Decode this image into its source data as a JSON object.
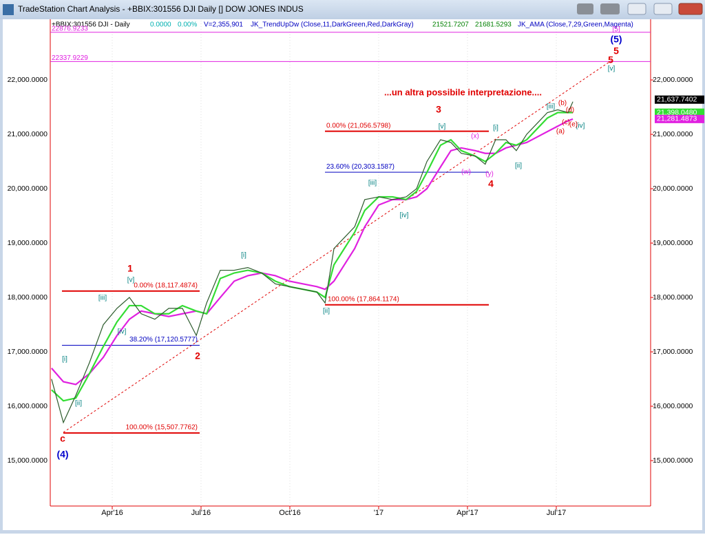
{
  "window": {
    "title": "TradeStation Chart Analysis - +BBIX:301556 DJI Daily [] DOW JONES INDUS"
  },
  "chart_data": {
    "type": "line",
    "header": {
      "symbol": "+BBIX:301556 DJI - Daily",
      "change": "0.0000",
      "change_pct": "0.00%",
      "volume": "V=2,355,901",
      "indicator1": "JK_TrendUpDw (Close,11,DarkGreen,Red,DarkGray)",
      "indicator1_v1": "21521.7207",
      "indicator1_v2": "21681.5293",
      "indicator2": "JK_AMA (Close,7,29,Green,Magenta)"
    },
    "annotation": "...un altra possibile interpretazione....",
    "x": [
      0.95,
      1.35,
      1.77,
      2.23,
      2.7,
      3.16,
      3.58,
      3.98,
      4.44,
      4.91,
      5.37,
      5.84,
      6.19,
      6.65,
      7.12,
      7.58,
      8.05,
      8.51,
      8.98,
      9.44,
      9.91,
      10.19,
      10.49,
      10.84,
      11.19,
      11.53,
      12.0,
      12.47,
      12.93,
      13.28,
      13.63,
      14.09,
      14.44,
      14.79,
      15.26,
      15.6,
      15.95,
      16.3,
      16.65,
      17.0,
      17.35,
      17.7,
      18.05,
      18.4,
      18.56
    ],
    "series": [
      {
        "color": "#2b5a2b",
        "values": [
          16500,
          15700,
          16200,
          16800,
          17500,
          17800,
          18000,
          17700,
          17600,
          17800,
          17800,
          17300,
          17900,
          18500,
          18500,
          18550,
          18450,
          18250,
          18200,
          18150,
          18100,
          17900,
          18900,
          19100,
          19300,
          19800,
          19850,
          19800,
          19850,
          20000,
          20500,
          20900,
          20850,
          20650,
          20600,
          20450,
          20900,
          20900,
          20700,
          21000,
          21200,
          21400,
          21450,
          21400,
          21600
        ]
      },
      {
        "color": "#33dd33",
        "values": [
          16300,
          16100,
          16150,
          16600,
          17100,
          17550,
          17850,
          17850,
          17700,
          17700,
          17850,
          17750,
          17700,
          18350,
          18450,
          18500,
          18450,
          18300,
          18200,
          18150,
          18100,
          18000,
          18600,
          18900,
          19200,
          19600,
          19850,
          19850,
          19800,
          19950,
          20300,
          20800,
          20900,
          20700,
          20600,
          20500,
          20650,
          20850,
          20800,
          20900,
          21100,
          21300,
          21400,
          21400,
          21400
        ]
      },
      {
        "color": "#e020e0",
        "values": [
          16700,
          16450,
          16400,
          16600,
          16900,
          17300,
          17600,
          17750,
          17700,
          17650,
          17700,
          17750,
          17700,
          18000,
          18300,
          18400,
          18450,
          18400,
          18300,
          18250,
          18200,
          18150,
          18300,
          18600,
          18900,
          19300,
          19700,
          19800,
          19800,
          19850,
          20000,
          20400,
          20700,
          20750,
          20700,
          20650,
          20650,
          20750,
          20800,
          20850,
          20950,
          21050,
          21150,
          21250,
          21280
        ]
      }
    ],
    "xlim": [
      0.907,
      21.186
    ],
    "xticks": [
      {
        "value": 3,
        "label": "Apr'16"
      },
      {
        "value": 6,
        "label": "Jul'16"
      },
      {
        "value": 9,
        "label": "Oct'16"
      },
      {
        "value": 12,
        "label": "'17"
      },
      {
        "value": 15,
        "label": "Apr'17"
      },
      {
        "value": 18,
        "label": "Jul'17"
      }
    ],
    "ylim": [
      14165,
      23090
    ],
    "yticks": [
      {
        "value": 15000,
        "label": "15,000.0000"
      },
      {
        "value": 16000,
        "label": "16,000.0000"
      },
      {
        "value": 17000,
        "label": "17,000.0000"
      },
      {
        "value": 18000,
        "label": "18,000.0000"
      },
      {
        "value": 19000,
        "label": "19,000.0000"
      },
      {
        "value": 20000,
        "label": "20,000.0000"
      },
      {
        "value": 21000,
        "label": "21,000.0000"
      },
      {
        "value": 22000,
        "label": "22,000.0000"
      }
    ],
    "levels": [
      {
        "label": "0.00% (18,117.4874)",
        "value": 18117.4874,
        "color": "#e00000"
      },
      {
        "label": "38.20% (17,120.5777)",
        "value": 17120.5777,
        "color": "#0000c0"
      },
      {
        "label": "100.00% (15,507.7762)",
        "value": 15507.7762,
        "color": "#e00000"
      },
      {
        "label": "0.00% (21,056.5798)",
        "value": 21056.5798,
        "color": "#e00000"
      },
      {
        "label": "23.60% (20,303.1587)",
        "value": 20303.1587,
        "color": "#0000c0"
      },
      {
        "label": "100.00% (17,864.1174)",
        "value": 17864.1174,
        "color": "#e00000"
      }
    ],
    "magenta_levels": [
      {
        "label": "22876.9233",
        "value": 22876.9233
      },
      {
        "label": "22337.9229",
        "value": 22337.9229
      }
    ],
    "last_values": [
      {
        "label": "21,637.7402",
        "value": 21637.7402,
        "color": "#000000"
      },
      {
        "label": "21,398.0480",
        "value": 21398.048,
        "color": "#33dd33"
      },
      {
        "label": "21,281.4873",
        "value": 21281.4873,
        "color": "#e020e0"
      }
    ],
    "wave_labels": [
      {
        "text": "1",
        "color": "#e00000"
      },
      {
        "text": "2",
        "color": "#e00000"
      },
      {
        "text": "3",
        "color": "#e00000"
      },
      {
        "text": "4",
        "color": "#e00000"
      },
      {
        "text": "5",
        "color": "#e00000"
      },
      {
        "text": "5",
        "color": "#e00000"
      },
      {
        "text": "(5)",
        "color": "#0000cc"
      },
      {
        "text": "[5]",
        "color": "#e020e0"
      },
      {
        "text": "(4)",
        "color": "#0000cc"
      },
      {
        "text": "c",
        "color": "#e00000"
      },
      {
        "text": "[i]",
        "color": "#008080"
      },
      {
        "text": "[ii]",
        "color": "#008080"
      },
      {
        "text": "[iii]",
        "color": "#008080"
      },
      {
        "text": "[iv]",
        "color": "#008080"
      },
      {
        "text": "[v]",
        "color": "#008080"
      },
      {
        "text": "[i]",
        "color": "#008080"
      },
      {
        "text": "[ii]",
        "color": "#008080"
      },
      {
        "text": "[iii]",
        "color": "#008080"
      },
      {
        "text": "[iv]",
        "color": "#008080"
      },
      {
        "text": "[v]",
        "color": "#008080"
      },
      {
        "text": "[i]",
        "color": "#008080"
      },
      {
        "text": "[ii]",
        "color": "#008080"
      },
      {
        "text": "[iii]",
        "color": "#008080"
      },
      {
        "text": "[iv]",
        "color": "#008080"
      },
      {
        "text": "[v]",
        "color": "#008080"
      },
      {
        "text": "(w)",
        "color": "#e020e0"
      },
      {
        "text": "(x)",
        "color": "#e020e0"
      },
      {
        "text": "(y)",
        "color": "#e020e0"
      },
      {
        "text": "(a)",
        "color": "#e00000"
      },
      {
        "text": "(b)",
        "color": "#e00000"
      },
      {
        "text": "(c)",
        "color": "#e00000"
      },
      {
        "text": "(d)",
        "color": "#e00000"
      },
      {
        "text": "(e)",
        "color": "#e00000"
      }
    ]
  }
}
